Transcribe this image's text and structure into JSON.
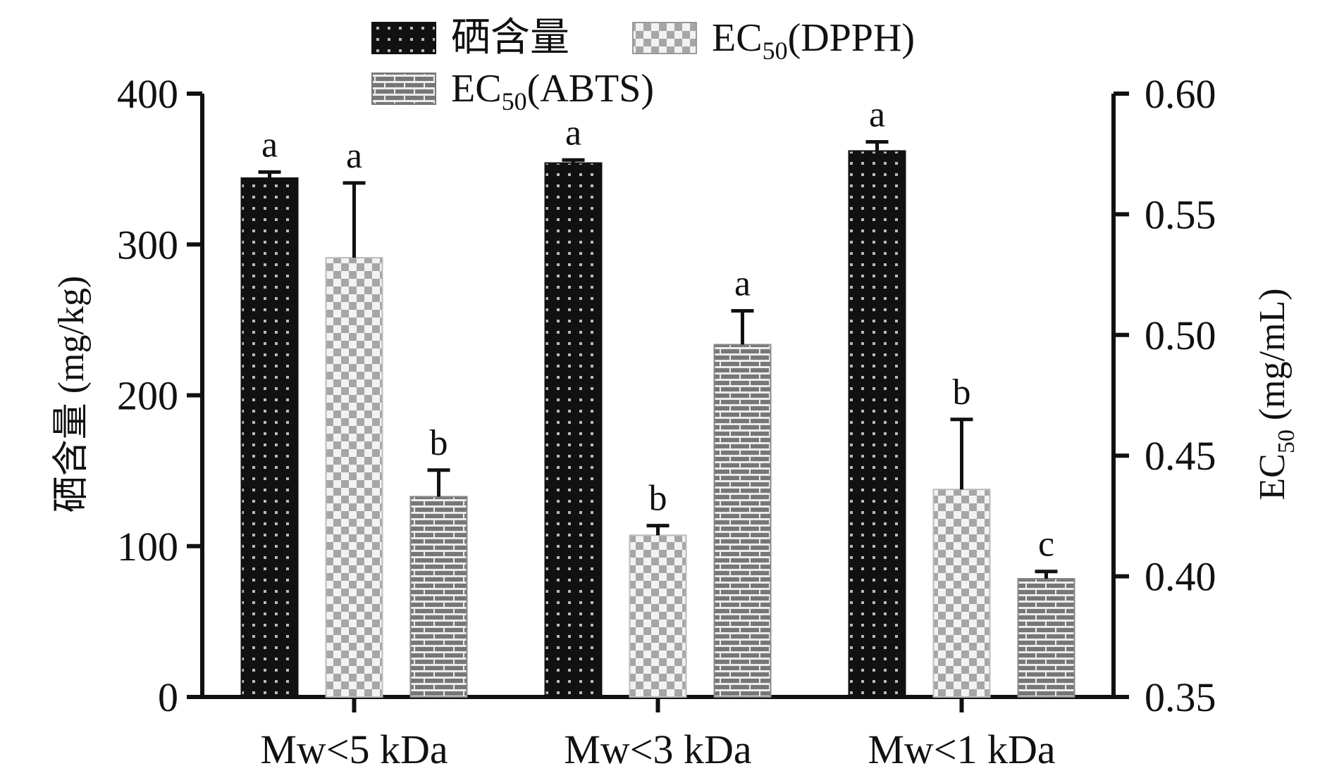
{
  "chart_data": {
    "type": "bar",
    "categories": [
      "Mw<5 kDa",
      "Mw<3 kDa",
      "Mw<1 kDa"
    ],
    "left_axis": {
      "label": "硒含量 (mg/kg)",
      "ylim": [
        0,
        400
      ],
      "ticks": [
        0,
        100,
        200,
        300,
        400
      ],
      "tick_labels": [
        "0",
        "100",
        "200",
        "300",
        "400"
      ]
    },
    "right_axis": {
      "label_main": "EC",
      "label_sub": "50",
      "label_rest": " (mg/mL)",
      "ylim": [
        0.35,
        0.6
      ],
      "ticks": [
        0.35,
        0.4,
        0.45,
        0.5,
        0.55,
        0.6
      ],
      "tick_labels": [
        "0.35",
        "0.40",
        "0.45",
        "0.50",
        "0.55",
        "0.60"
      ]
    },
    "series": [
      {
        "name": "硒含量",
        "legend_main": "硒含量",
        "legend_sub": "",
        "legend_rest": "",
        "axis": "left",
        "pattern": "dots",
        "values": [
          344,
          354,
          362
        ],
        "errors": [
          4,
          2,
          6
        ],
        "significance": [
          "a",
          "a",
          "a"
        ]
      },
      {
        "name": "EC50(DPPH)",
        "legend_main": "EC",
        "legend_sub": "50",
        "legend_rest": "(DPPH)",
        "axis": "right",
        "pattern": "checker",
        "values": [
          0.532,
          0.417,
          0.436
        ],
        "errors": [
          0.031,
          0.004,
          0.029
        ],
        "significance": [
          "a",
          "b",
          "b"
        ]
      },
      {
        "name": "EC50(ABTS)",
        "legend_main": "EC",
        "legend_sub": "50",
        "legend_rest": "(ABTS)",
        "axis": "right",
        "pattern": "brick",
        "values": [
          0.433,
          0.496,
          0.399
        ],
        "errors": [
          0.011,
          0.014,
          0.003
        ],
        "significance": [
          "b",
          "a",
          "c"
        ]
      }
    ]
  }
}
